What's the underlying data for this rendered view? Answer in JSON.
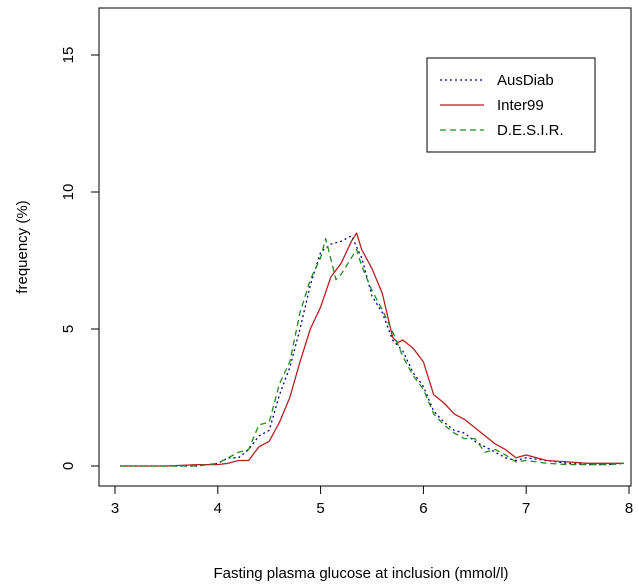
{
  "chart_data": {
    "type": "line",
    "xlabel": "Fasting plasma glucose at inclusion (mmol/l)",
    "ylabel": "frequency (%)",
    "xlim": [
      3,
      8
    ],
    "ylim": [
      0,
      15
    ],
    "x_ticks": [
      "3",
      "4",
      "5",
      "6",
      "7",
      "8"
    ],
    "y_ticks": [
      "0",
      "5",
      "10",
      "15"
    ],
    "grid": false,
    "legend_position": "top-right",
    "series": [
      {
        "name": "AusDiab",
        "color": "#00008b",
        "style": "dotted",
        "x": [
          3.05,
          3.5,
          3.8,
          4.0,
          4.1,
          4.2,
          4.3,
          4.4,
          4.5,
          4.6,
          4.7,
          4.8,
          4.9,
          5.0,
          5.1,
          5.2,
          5.3,
          5.4,
          5.5,
          5.6,
          5.7,
          5.8,
          5.9,
          6.0,
          6.1,
          6.2,
          6.3,
          6.4,
          6.5,
          6.6,
          6.7,
          6.8,
          6.9,
          7.0,
          7.2,
          7.4,
          7.6,
          7.8,
          7.95
        ],
        "y": [
          0,
          0,
          0,
          0.1,
          0.3,
          0.3,
          0.6,
          1.1,
          1.3,
          2.6,
          3.6,
          5.0,
          6.6,
          7.8,
          8.1,
          8.2,
          8.4,
          7.6,
          6.2,
          5.6,
          4.6,
          4.2,
          3.4,
          2.9,
          2.0,
          1.6,
          1.3,
          1.2,
          0.9,
          0.7,
          0.5,
          0.3,
          0.2,
          0.3,
          0.2,
          0.1,
          0.05,
          0.05,
          0.1
        ]
      },
      {
        "name": "Inter99",
        "color": "#b22222",
        "style": "solid",
        "x": [
          3.05,
          3.5,
          3.8,
          4.0,
          4.1,
          4.2,
          4.3,
          4.4,
          4.5,
          4.6,
          4.7,
          4.8,
          4.9,
          5.0,
          5.1,
          5.2,
          5.3,
          5.35,
          5.4,
          5.5,
          5.6,
          5.7,
          5.75,
          5.8,
          5.9,
          6.0,
          6.1,
          6.2,
          6.3,
          6.4,
          6.5,
          6.6,
          6.7,
          6.8,
          6.9,
          7.0,
          7.2,
          7.4,
          7.6,
          7.8,
          7.95
        ],
        "y": [
          0,
          0,
          0.05,
          0.05,
          0.1,
          0.2,
          0.2,
          0.7,
          0.9,
          1.6,
          2.5,
          3.8,
          5.0,
          5.8,
          6.9,
          7.4,
          8.2,
          8.5,
          7.9,
          7.2,
          6.3,
          4.7,
          4.5,
          4.6,
          4.3,
          3.8,
          2.6,
          2.3,
          1.9,
          1.7,
          1.4,
          1.1,
          0.8,
          0.6,
          0.3,
          0.4,
          0.2,
          0.15,
          0.1,
          0.1,
          0.1
        ]
      },
      {
        "name": "D.E.S.I.R.",
        "color": "#228b22",
        "style": "dashed",
        "x": [
          3.05,
          3.5,
          3.8,
          4.0,
          4.1,
          4.2,
          4.3,
          4.4,
          4.5,
          4.6,
          4.7,
          4.8,
          4.9,
          5.0,
          5.05,
          5.15,
          5.2,
          5.3,
          5.35,
          5.4,
          5.5,
          5.6,
          5.7,
          5.8,
          5.9,
          6.0,
          6.1,
          6.2,
          6.3,
          6.4,
          6.5,
          6.6,
          6.7,
          6.8,
          6.9,
          7.0,
          7.2,
          7.4,
          7.6,
          7.8,
          7.95
        ],
        "y": [
          0,
          0,
          0,
          0.1,
          0.3,
          0.5,
          0.6,
          1.5,
          1.6,
          3.0,
          3.8,
          5.6,
          6.8,
          7.6,
          8.3,
          6.8,
          7.0,
          7.6,
          7.9,
          7.3,
          6.4,
          5.7,
          4.9,
          4.0,
          3.3,
          2.8,
          1.9,
          1.5,
          1.2,
          1.0,
          1.0,
          0.5,
          0.6,
          0.4,
          0.15,
          0.2,
          0.1,
          0.05,
          0.05,
          0.05,
          0.1
        ]
      }
    ]
  }
}
